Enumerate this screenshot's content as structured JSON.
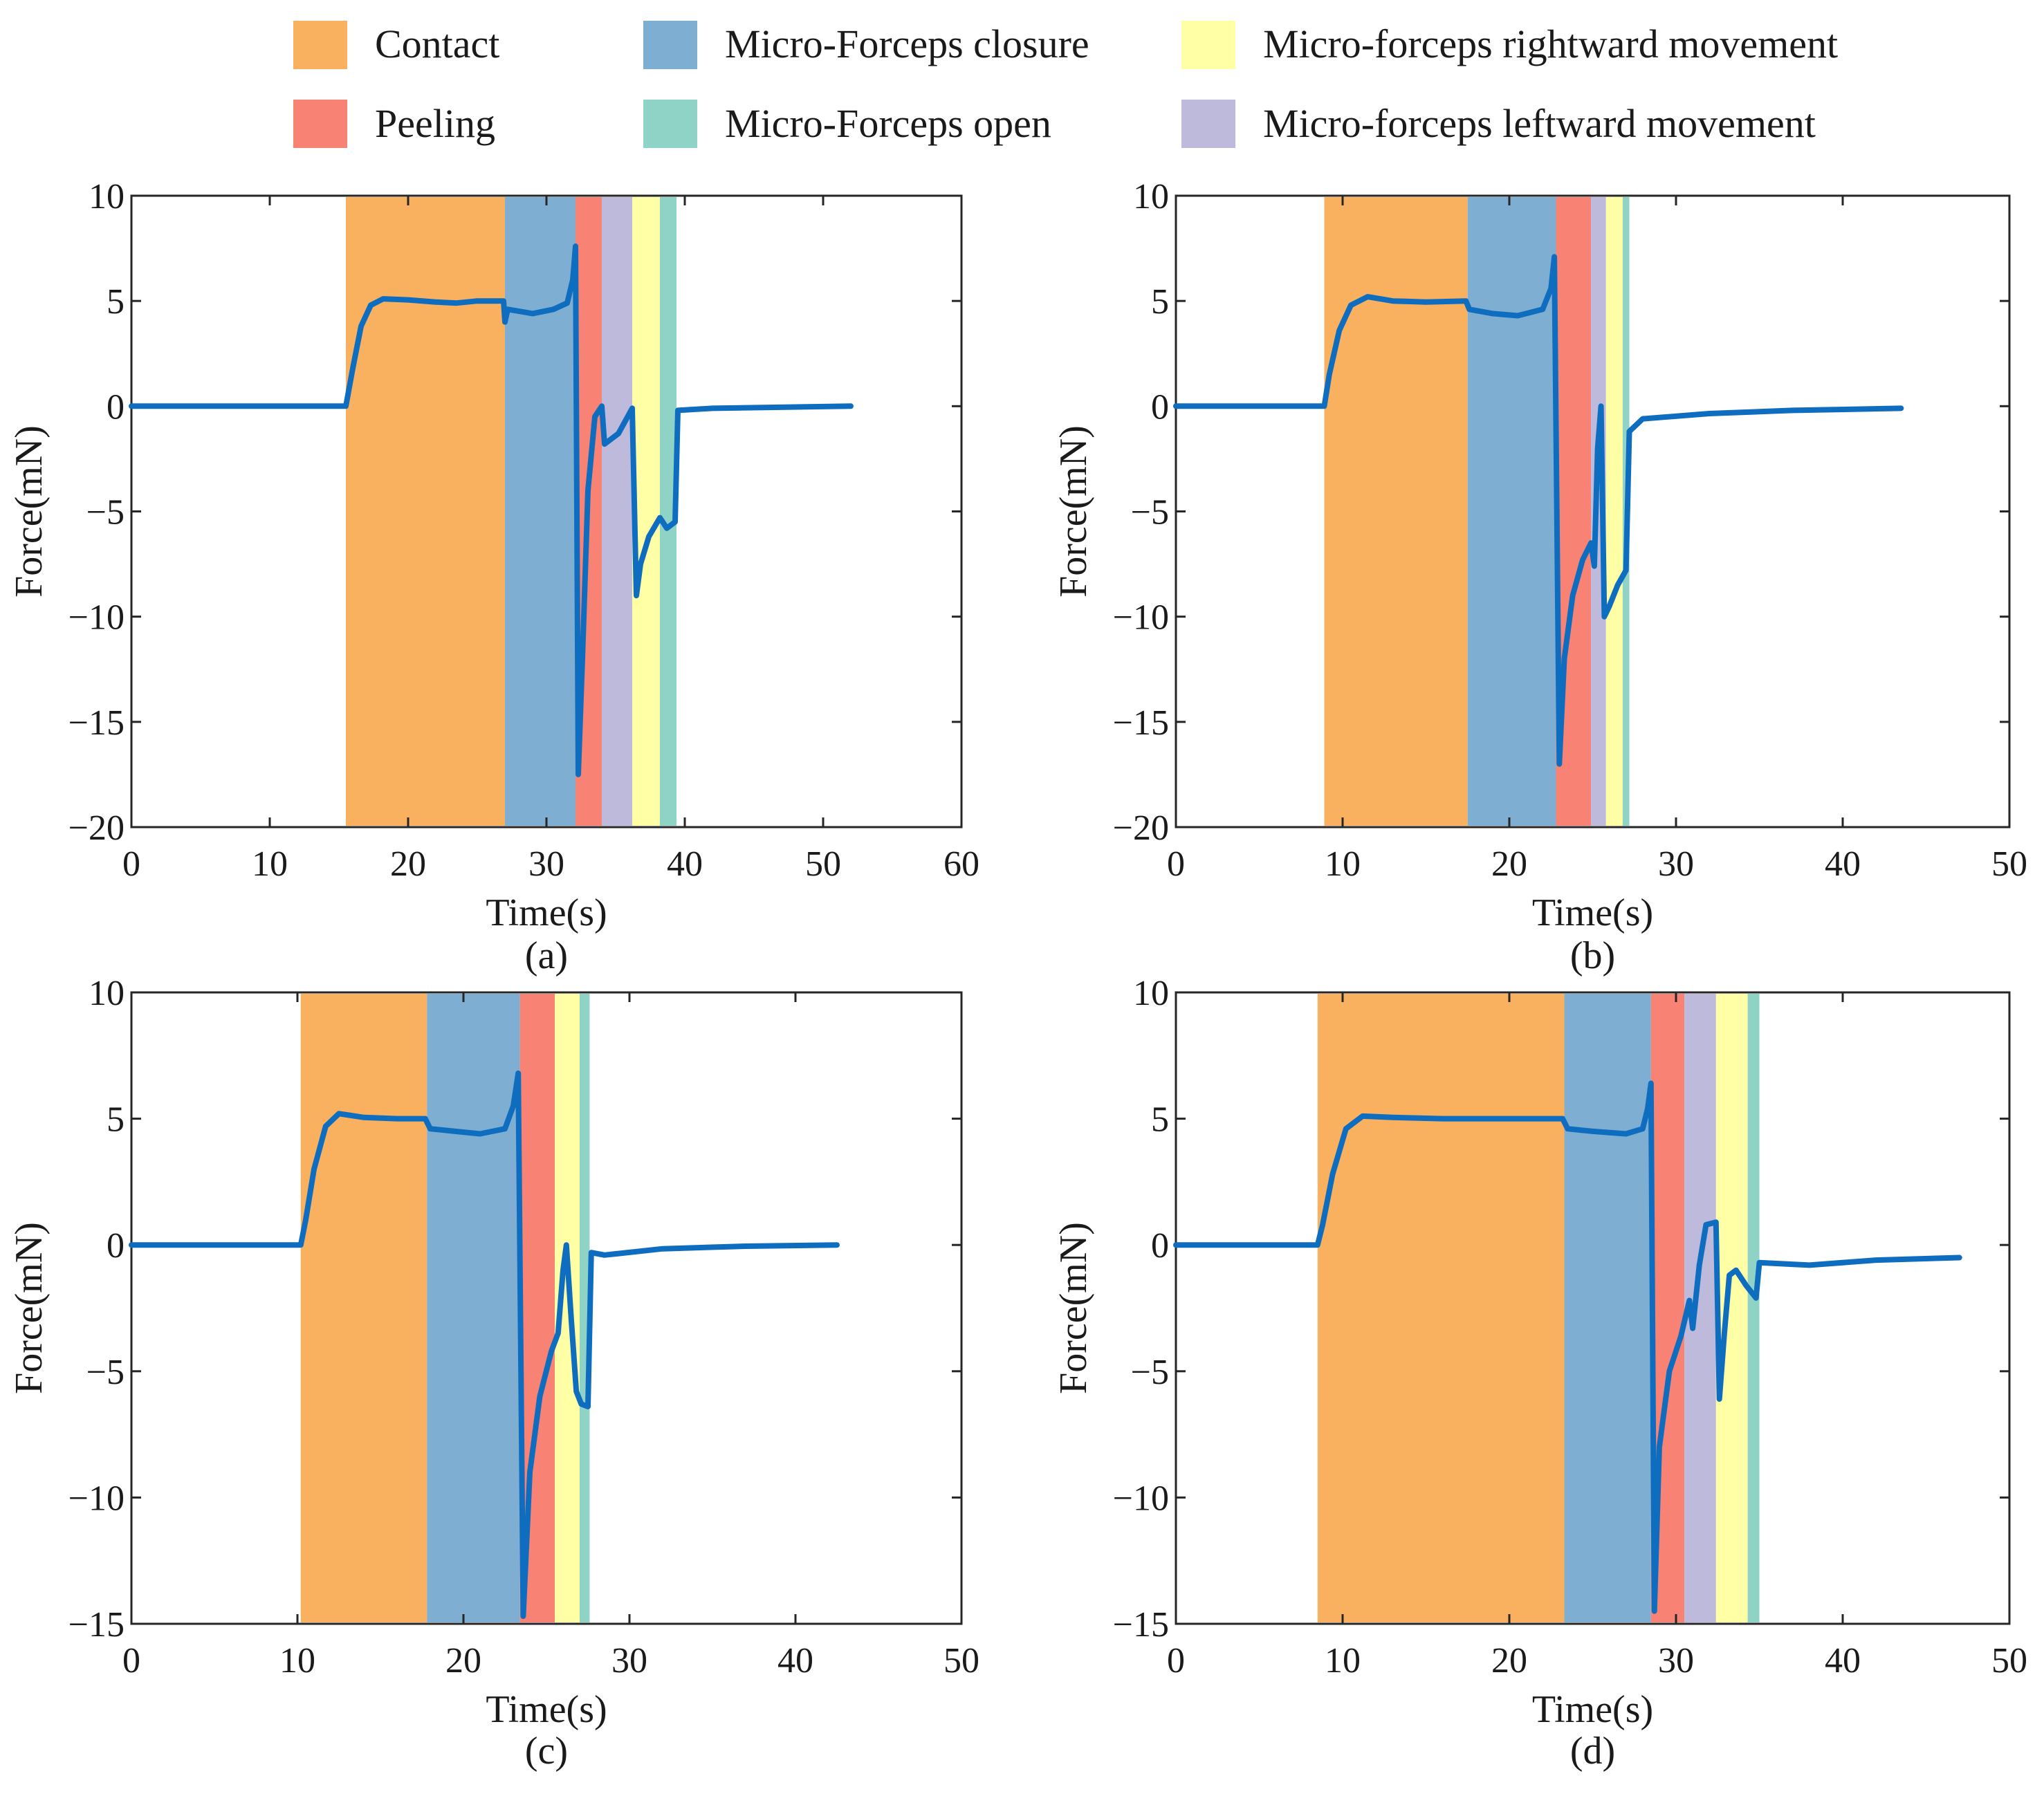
{
  "legend": [
    {
      "key": "contact",
      "label": "Contact",
      "color": "#F9B160"
    },
    {
      "key": "closure",
      "label": "Micro-Forceps closure",
      "color": "#7EAFD3"
    },
    {
      "key": "right",
      "label": "Micro-forceps rightward movement",
      "color": "#FFFFA6"
    },
    {
      "key": "peeling",
      "label": "Peeling",
      "color": "#F88273"
    },
    {
      "key": "open",
      "label": "Micro-Forceps open",
      "color": "#8ED3C6"
    },
    {
      "key": "left",
      "label": "Micro-forceps leftward movement",
      "color": "#BDBADB"
    }
  ],
  "line_color": "#0F6DBF",
  "chart_data": [
    {
      "type": "line",
      "caption": "(a)",
      "xlabel": "Time(s)",
      "ylabel": "Force(mN)",
      "xlim": [
        0,
        60
      ],
      "ylim": [
        -20,
        10
      ],
      "xticks": [
        0,
        10,
        20,
        30,
        40,
        50,
        60
      ],
      "yticks": [
        10,
        5,
        0,
        -5,
        -10,
        -15,
        -20
      ],
      "phases": [
        {
          "phase": "contact",
          "start": 15.5,
          "end": 27.0
        },
        {
          "phase": "closure",
          "start": 27.0,
          "end": 32.1
        },
        {
          "phase": "peeling",
          "start": 32.1,
          "end": 34.0
        },
        {
          "phase": "left",
          "start": 34.0,
          "end": 36.2
        },
        {
          "phase": "right",
          "start": 36.2,
          "end": 38.2
        },
        {
          "phase": "open",
          "start": 38.2,
          "end": 39.4
        }
      ],
      "series": [
        {
          "name": "Force",
          "points": [
            [
              0,
              0
            ],
            [
              15.5,
              0
            ],
            [
              16.0,
              1.8
            ],
            [
              16.6,
              3.8
            ],
            [
              17.3,
              4.8
            ],
            [
              18.2,
              5.1
            ],
            [
              20,
              5.05
            ],
            [
              22,
              4.95
            ],
            [
              23.5,
              4.9
            ],
            [
              25,
              5.0
            ],
            [
              26.9,
              5.0
            ],
            [
              27.0,
              4.0
            ],
            [
              27.2,
              4.6
            ],
            [
              29,
              4.4
            ],
            [
              30.5,
              4.6
            ],
            [
              31.5,
              4.9
            ],
            [
              31.9,
              6.0
            ],
            [
              32.1,
              7.6
            ],
            [
              32.3,
              -17.5
            ],
            [
              32.6,
              -12
            ],
            [
              33.0,
              -4
            ],
            [
              33.5,
              -0.5
            ],
            [
              34.0,
              0.0
            ],
            [
              34.2,
              -1.8
            ],
            [
              35.2,
              -1.3
            ],
            [
              36.2,
              -0.1
            ],
            [
              36.5,
              -9.0
            ],
            [
              36.8,
              -7.5
            ],
            [
              37.4,
              -6.2
            ],
            [
              38.2,
              -5.3
            ],
            [
              38.7,
              -5.8
            ],
            [
              39.3,
              -5.5
            ],
            [
              39.5,
              -0.2
            ],
            [
              42,
              -0.1
            ],
            [
              52,
              0
            ]
          ]
        }
      ]
    },
    {
      "type": "line",
      "caption": "(b)",
      "xlabel": "Time(s)",
      "ylabel": "Force(mN)",
      "xlim": [
        0,
        50
      ],
      "ylim": [
        -20,
        10
      ],
      "xticks": [
        0,
        10,
        20,
        30,
        40,
        50
      ],
      "yticks": [
        10,
        5,
        0,
        -5,
        -10,
        -15,
        -20
      ],
      "phases": [
        {
          "phase": "contact",
          "start": 8.9,
          "end": 17.5
        },
        {
          "phase": "closure",
          "start": 17.5,
          "end": 22.8
        },
        {
          "phase": "peeling",
          "start": 22.8,
          "end": 24.9
        },
        {
          "phase": "left",
          "start": 24.9,
          "end": 25.8
        },
        {
          "phase": "right",
          "start": 25.8,
          "end": 26.8
        },
        {
          "phase": "open",
          "start": 26.8,
          "end": 27.2
        }
      ],
      "series": [
        {
          "name": "Force",
          "points": [
            [
              0,
              0
            ],
            [
              8.9,
              0
            ],
            [
              9.2,
              1.5
            ],
            [
              9.8,
              3.6
            ],
            [
              10.5,
              4.8
            ],
            [
              11.5,
              5.2
            ],
            [
              13,
              5.0
            ],
            [
              15,
              4.95
            ],
            [
              17.4,
              5.0
            ],
            [
              17.6,
              4.6
            ],
            [
              19,
              4.4
            ],
            [
              20.5,
              4.3
            ],
            [
              22,
              4.6
            ],
            [
              22.5,
              5.6
            ],
            [
              22.7,
              7.1
            ],
            [
              23.0,
              -17.0
            ],
            [
              23.3,
              -12
            ],
            [
              23.8,
              -9
            ],
            [
              24.4,
              -7.3
            ],
            [
              24.9,
              -6.5
            ],
            [
              25.1,
              -7.6
            ],
            [
              25.3,
              -2
            ],
            [
              25.5,
              0
            ],
            [
              25.7,
              -10.0
            ],
            [
              26.0,
              -9.5
            ],
            [
              26.5,
              -8.5
            ],
            [
              27.0,
              -7.8
            ],
            [
              27.2,
              -1.2
            ],
            [
              28,
              -0.6
            ],
            [
              32,
              -0.35
            ],
            [
              37,
              -0.2
            ],
            [
              43.5,
              -0.1
            ]
          ]
        }
      ]
    },
    {
      "type": "line",
      "caption": "(c)",
      "xlabel": "Time(s)",
      "ylabel": "Force(mN)",
      "xlim": [
        0,
        50
      ],
      "ylim": [
        -15,
        10
      ],
      "xticks": [
        0,
        10,
        20,
        30,
        40,
        50
      ],
      "yticks": [
        10,
        5,
        0,
        -5,
        -10,
        -15
      ],
      "phases": [
        {
          "phase": "contact",
          "start": 10.2,
          "end": 17.8
        },
        {
          "phase": "closure",
          "start": 17.8,
          "end": 23.4
        },
        {
          "phase": "peeling",
          "start": 23.4,
          "end": 25.5
        },
        {
          "phase": "right",
          "start": 25.5,
          "end": 27.0
        },
        {
          "phase": "open",
          "start": 27.0,
          "end": 27.6
        }
      ],
      "series": [
        {
          "name": "Force",
          "points": [
            [
              0,
              0
            ],
            [
              10.2,
              0
            ],
            [
              10.5,
              1.0
            ],
            [
              11.0,
              3.0
            ],
            [
              11.7,
              4.7
            ],
            [
              12.5,
              5.2
            ],
            [
              14,
              5.05
            ],
            [
              16,
              5.0
            ],
            [
              17.7,
              5.0
            ],
            [
              18.0,
              4.6
            ],
            [
              19.5,
              4.5
            ],
            [
              21,
              4.4
            ],
            [
              22.5,
              4.6
            ],
            [
              23.0,
              5.5
            ],
            [
              23.3,
              6.8
            ],
            [
              23.6,
              -14.7
            ],
            [
              24.0,
              -9
            ],
            [
              24.6,
              -6
            ],
            [
              25.3,
              -4.2
            ],
            [
              25.7,
              -3.5
            ],
            [
              26.0,
              -1
            ],
            [
              26.2,
              0
            ],
            [
              26.5,
              -3
            ],
            [
              26.8,
              -5.8
            ],
            [
              27.1,
              -6.3
            ],
            [
              27.5,
              -6.4
            ],
            [
              27.7,
              -0.3
            ],
            [
              28.5,
              -0.4
            ],
            [
              32,
              -0.15
            ],
            [
              37,
              -0.05
            ],
            [
              42.5,
              0
            ]
          ]
        }
      ]
    },
    {
      "type": "line",
      "caption": "(d)",
      "xlabel": "Time(s)",
      "ylabel": "Force(mN)",
      "xlim": [
        0,
        50
      ],
      "ylim": [
        -15,
        10
      ],
      "xticks": [
        0,
        10,
        20,
        30,
        40,
        50
      ],
      "yticks": [
        10,
        5,
        0,
        -5,
        -10,
        -15
      ],
      "phases": [
        {
          "phase": "contact",
          "start": 8.5,
          "end": 23.3
        },
        {
          "phase": "closure",
          "start": 23.3,
          "end": 28.5
        },
        {
          "phase": "peeling",
          "start": 28.5,
          "end": 30.5
        },
        {
          "phase": "left",
          "start": 30.5,
          "end": 32.4
        },
        {
          "phase": "right",
          "start": 32.4,
          "end": 34.3
        },
        {
          "phase": "open",
          "start": 34.3,
          "end": 35.0
        }
      ],
      "series": [
        {
          "name": "Force",
          "points": [
            [
              0,
              0
            ],
            [
              8.5,
              0
            ],
            [
              8.8,
              0.8
            ],
            [
              9.4,
              2.8
            ],
            [
              10.2,
              4.6
            ],
            [
              11.2,
              5.1
            ],
            [
              13,
              5.05
            ],
            [
              16,
              5.0
            ],
            [
              20,
              5.0
            ],
            [
              23.2,
              5.0
            ],
            [
              23.5,
              4.6
            ],
            [
              25,
              4.5
            ],
            [
              27,
              4.4
            ],
            [
              28.0,
              4.6
            ],
            [
              28.3,
              5.4
            ],
            [
              28.5,
              6.4
            ],
            [
              28.7,
              -14.5
            ],
            [
              29.0,
              -8
            ],
            [
              29.6,
              -5
            ],
            [
              30.3,
              -3.6
            ],
            [
              30.8,
              -2.2
            ],
            [
              31.0,
              -3.3
            ],
            [
              31.4,
              -0.8
            ],
            [
              31.8,
              0.8
            ],
            [
              32.4,
              0.9
            ],
            [
              32.6,
              -6.1
            ],
            [
              32.9,
              -3.5
            ],
            [
              33.2,
              -1.2
            ],
            [
              33.6,
              -1.0
            ],
            [
              34.2,
              -1.6
            ],
            [
              34.8,
              -2.1
            ],
            [
              35.0,
              -0.7
            ],
            [
              38,
              -0.8
            ],
            [
              42,
              -0.6
            ],
            [
              47,
              -0.5
            ]
          ]
        }
      ]
    }
  ]
}
